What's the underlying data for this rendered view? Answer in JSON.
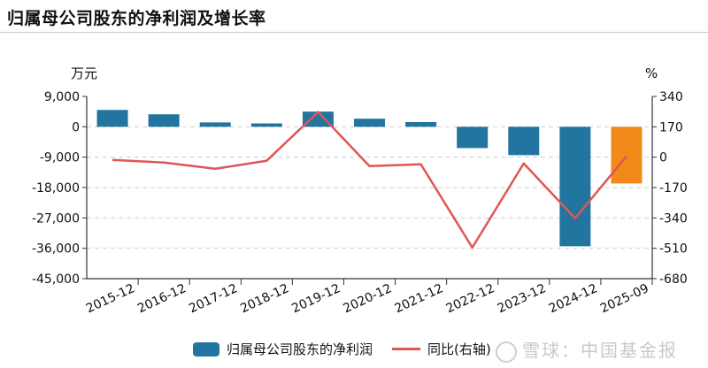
{
  "title": "归属母公司股东的净利润及增长率",
  "chart_data": {
    "type": "bar+line",
    "title": "归属母公司股东的净利润及增长率",
    "categories": [
      "2015-12",
      "2016-12",
      "2017-12",
      "2018-12",
      "2019-12",
      "2020-12",
      "2021-12",
      "2022-12",
      "2023-12",
      "2024-12",
      "2025-09"
    ],
    "series": [
      {
        "name": "归属母公司股东的净利润",
        "type": "bar",
        "axis": "left",
        "unit": "万元",
        "values": [
          5000,
          3700,
          1300,
          1000,
          4500,
          2400,
          1400,
          -6300,
          -8400,
          -35400,
          -16800
        ],
        "color": "#21759f",
        "highlight_last_color": "#f28a1a"
      },
      {
        "name": "同比(右轴)",
        "type": "line",
        "axis": "right",
        "unit": "%",
        "values": [
          -15,
          -30,
          -65,
          -20,
          253,
          -50,
          -40,
          -506,
          -35,
          -342,
          5
        ],
        "color": "#e05555"
      }
    ],
    "left_axis": {
      "label": "万元",
      "ticks": [
        9000,
        0,
        -9000,
        -18000,
        -27000,
        -36000,
        -45000
      ],
      "tick_labels": [
        "9,000",
        "0",
        "-9,000",
        "-18,000",
        "-27,000",
        "-36,000",
        "-45,000"
      ],
      "ylim": [
        -45000,
        9000
      ]
    },
    "right_axis": {
      "label": "%",
      "ticks": [
        340,
        170,
        0,
        -170,
        -340,
        -510,
        -680
      ],
      "tick_labels": [
        "340",
        "170",
        "0",
        "-170",
        "-340",
        "-510",
        "-680"
      ],
      "ylim": [
        -680,
        340
      ]
    },
    "grid": true,
    "legend_position": "bottom"
  },
  "legend": {
    "bar_label": "归属母公司股东的净利润",
    "line_label": "同比(右轴)"
  },
  "watermark": "雪球：中国基金报"
}
